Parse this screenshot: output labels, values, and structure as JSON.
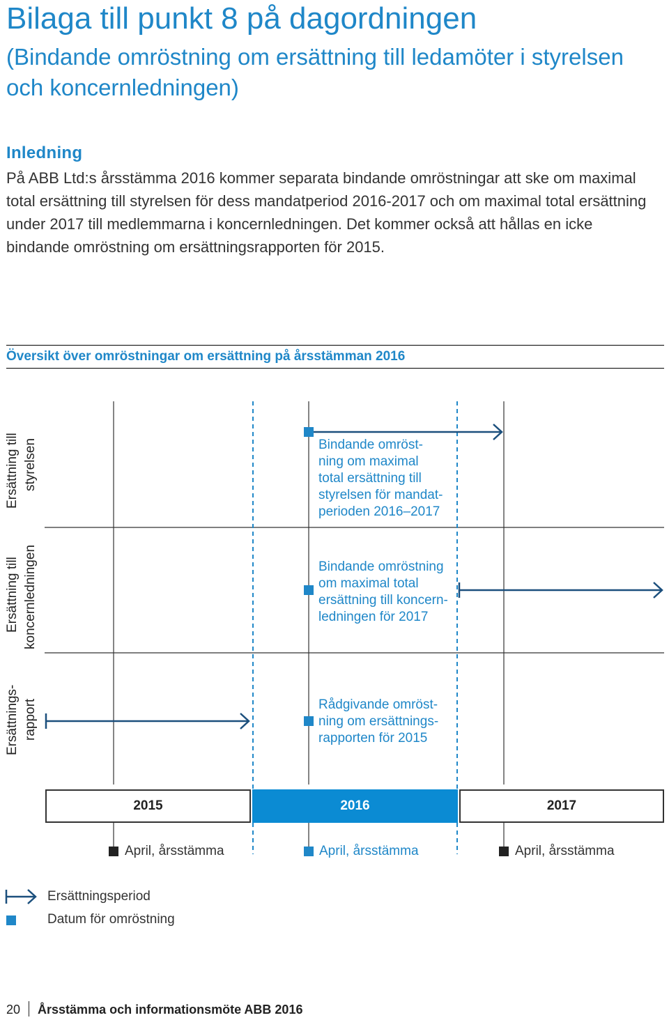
{
  "header": {
    "title": "Bilaga till punkt 8 på dagordningen",
    "subtitle": "(Bindande omröstning om ersättning till ledamöter i styrelsen och koncernledningen)"
  },
  "intro": {
    "heading": "Inledning",
    "text": "På ABB Ltd:s årsstämma 2016 kommer separata bindande omröstningar att ske om maximal total ersättning till styrelsen för dess mandatperiod 2016-2017 och om maximal total ersättning under 2017 till medlemmarna i koncernledningen. Det kommer också att hållas en icke bindande omröstning om ersättningsrapporten för 2015."
  },
  "overview": {
    "heading": "Översikt över omröstningar om ersättning på årsstämman 2016",
    "rows": [
      {
        "label_line1": "Ersättning till",
        "label_line2": "styrelsen",
        "text": [
          "Bindande omröst-",
          "ning om maximal",
          "total ersättning till",
          "styrelsen för mandat-",
          "perioden 2016–2017"
        ]
      },
      {
        "label_line1": "Ersättning till",
        "label_line2": "koncernledningen",
        "text": [
          "Bindande omröstning",
          "om maximal total",
          "ersättning till koncern-",
          "ledningen för 2017"
        ]
      },
      {
        "label_line1": "Ersättnings-",
        "label_line2": "rapport",
        "text": [
          "Rådgivande omröst-",
          "ning om ersättnings-",
          "rapporten för 2015"
        ]
      }
    ],
    "years": [
      "2015",
      "2016",
      "2017"
    ],
    "agm_label": "April, årsstämma",
    "legend": {
      "period": "Ersättningsperiod",
      "vote_date": "Datum för omröstning"
    },
    "colors": {
      "accent": "#1F87C8",
      "highlight": "#0B8BD3",
      "line": "#1B4F7D"
    }
  },
  "footer": {
    "page_number": "20",
    "publication": "Årsstämma och informationsmöte ABB 2016"
  }
}
